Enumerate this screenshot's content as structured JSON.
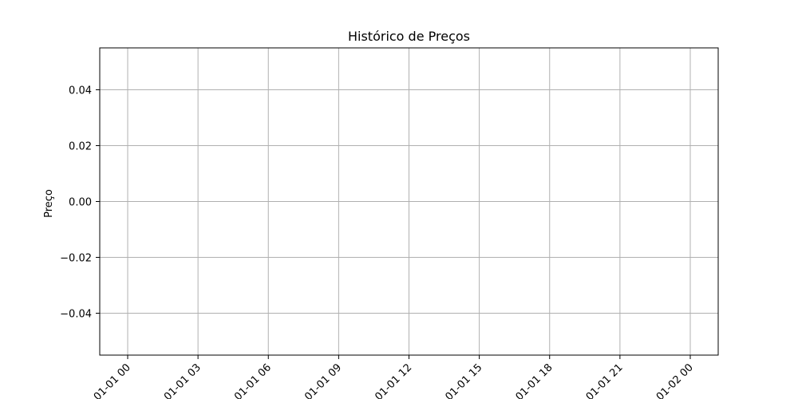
{
  "chart_data": {
    "type": "line",
    "title": "Histórico de Preços",
    "xlabel": "",
    "ylabel": "Preço",
    "x_tick_labels": [
      "01-01 00",
      "01-01 03",
      "01-01 06",
      "01-01 09",
      "01-01 12",
      "01-01 15",
      "01-01 18",
      "01-01 21",
      "01-02 00"
    ],
    "y_tick_labels": [
      "0.04",
      "0.02",
      "0.00",
      "−0.02",
      "−0.04"
    ],
    "y_ticks": [
      0.04,
      0.02,
      0.0,
      -0.02,
      -0.04
    ],
    "ylim": [
      -0.055,
      0.055
    ],
    "grid": true,
    "series": []
  },
  "colors": {
    "grid": "#b0b0b0",
    "axes": "#000000",
    "background": "#ffffff"
  }
}
